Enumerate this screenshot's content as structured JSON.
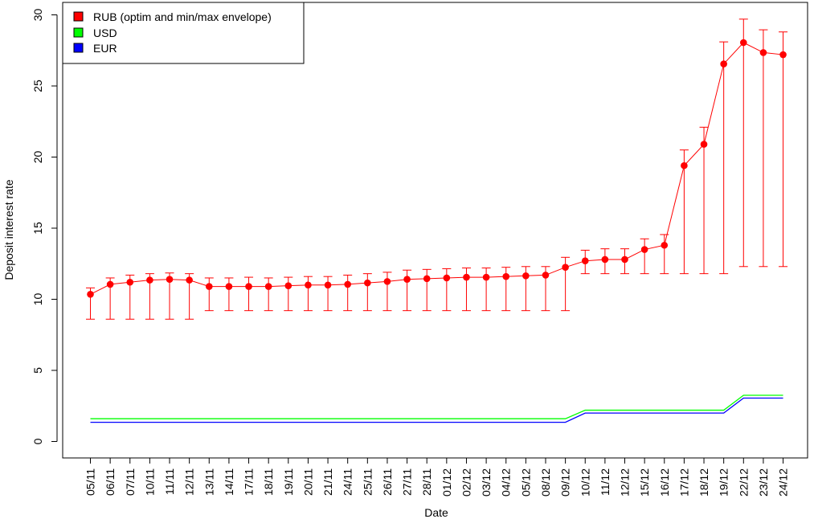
{
  "chart_data": {
    "type": "line",
    "xlabel": "Date",
    "ylabel": "Deposit interest rate",
    "ylim": [
      -1.2,
      30.6
    ],
    "y_ticks": [
      0,
      5,
      10,
      15,
      20,
      25,
      30
    ],
    "categories": [
      "05/11",
      "06/11",
      "07/11",
      "10/11",
      "11/11",
      "12/11",
      "13/11",
      "14/11",
      "17/11",
      "18/11",
      "19/11",
      "20/11",
      "21/11",
      "24/11",
      "25/11",
      "26/11",
      "27/11",
      "28/11",
      "01/12",
      "02/12",
      "03/12",
      "04/12",
      "05/12",
      "08/12",
      "09/12",
      "10/12",
      "11/12",
      "12/12",
      "15/12",
      "16/12",
      "17/12",
      "18/12",
      "19/12",
      "22/12",
      "23/12",
      "24/12"
    ],
    "series": [
      {
        "name": "RUB (optim and min/max envelope)",
        "color": "#ff0000",
        "values": [
          10.35,
          11.05,
          11.2,
          11.35,
          11.4,
          11.35,
          10.9,
          10.9,
          10.9,
          10.9,
          10.95,
          11.0,
          11.0,
          11.05,
          11.15,
          11.25,
          11.4,
          11.45,
          11.5,
          11.55,
          11.55,
          11.6,
          11.65,
          11.7,
          12.25,
          12.7,
          12.8,
          12.8,
          13.5,
          13.8,
          19.4,
          20.9,
          26.55,
          28.05,
          27.35,
          27.2
        ],
        "min": [
          8.6,
          8.6,
          8.6,
          8.6,
          8.6,
          8.6,
          9.2,
          9.2,
          9.2,
          9.2,
          9.2,
          9.2,
          9.2,
          9.2,
          9.2,
          9.2,
          9.2,
          9.2,
          9.2,
          9.2,
          9.2,
          9.2,
          9.2,
          9.2,
          9.2,
          11.8,
          11.8,
          11.8,
          11.8,
          11.8,
          11.8,
          11.8,
          11.8,
          12.3,
          12.3,
          12.3
        ],
        "max": [
          10.8,
          11.5,
          11.7,
          11.8,
          11.85,
          11.8,
          11.5,
          11.5,
          11.55,
          11.5,
          11.55,
          11.6,
          11.6,
          11.7,
          11.8,
          11.9,
          12.05,
          12.1,
          12.15,
          12.2,
          12.2,
          12.25,
          12.3,
          12.3,
          12.95,
          13.45,
          13.55,
          13.55,
          14.25,
          14.55,
          20.5,
          22.1,
          28.1,
          29.7,
          28.95,
          28.8
        ]
      },
      {
        "name": "USD",
        "color": "#00ff00",
        "values": [
          1.6,
          1.6,
          1.6,
          1.6,
          1.6,
          1.6,
          1.6,
          1.6,
          1.6,
          1.6,
          1.6,
          1.6,
          1.6,
          1.6,
          1.6,
          1.6,
          1.6,
          1.6,
          1.6,
          1.6,
          1.6,
          1.6,
          1.6,
          1.6,
          1.6,
          2.2,
          2.2,
          2.2,
          2.2,
          2.2,
          2.2,
          2.2,
          2.2,
          3.25,
          3.25,
          3.25
        ]
      },
      {
        "name": "EUR",
        "color": "#0000ff",
        "values": [
          1.35,
          1.35,
          1.35,
          1.35,
          1.35,
          1.35,
          1.35,
          1.35,
          1.35,
          1.35,
          1.35,
          1.35,
          1.35,
          1.35,
          1.35,
          1.35,
          1.35,
          1.35,
          1.35,
          1.35,
          1.35,
          1.35,
          1.35,
          1.35,
          1.35,
          2.0,
          2.0,
          2.0,
          2.0,
          2.0,
          2.0,
          2.0,
          2.0,
          3.05,
          3.05,
          3.05
        ]
      }
    ],
    "legend_position": "top-left",
    "grid": false
  }
}
